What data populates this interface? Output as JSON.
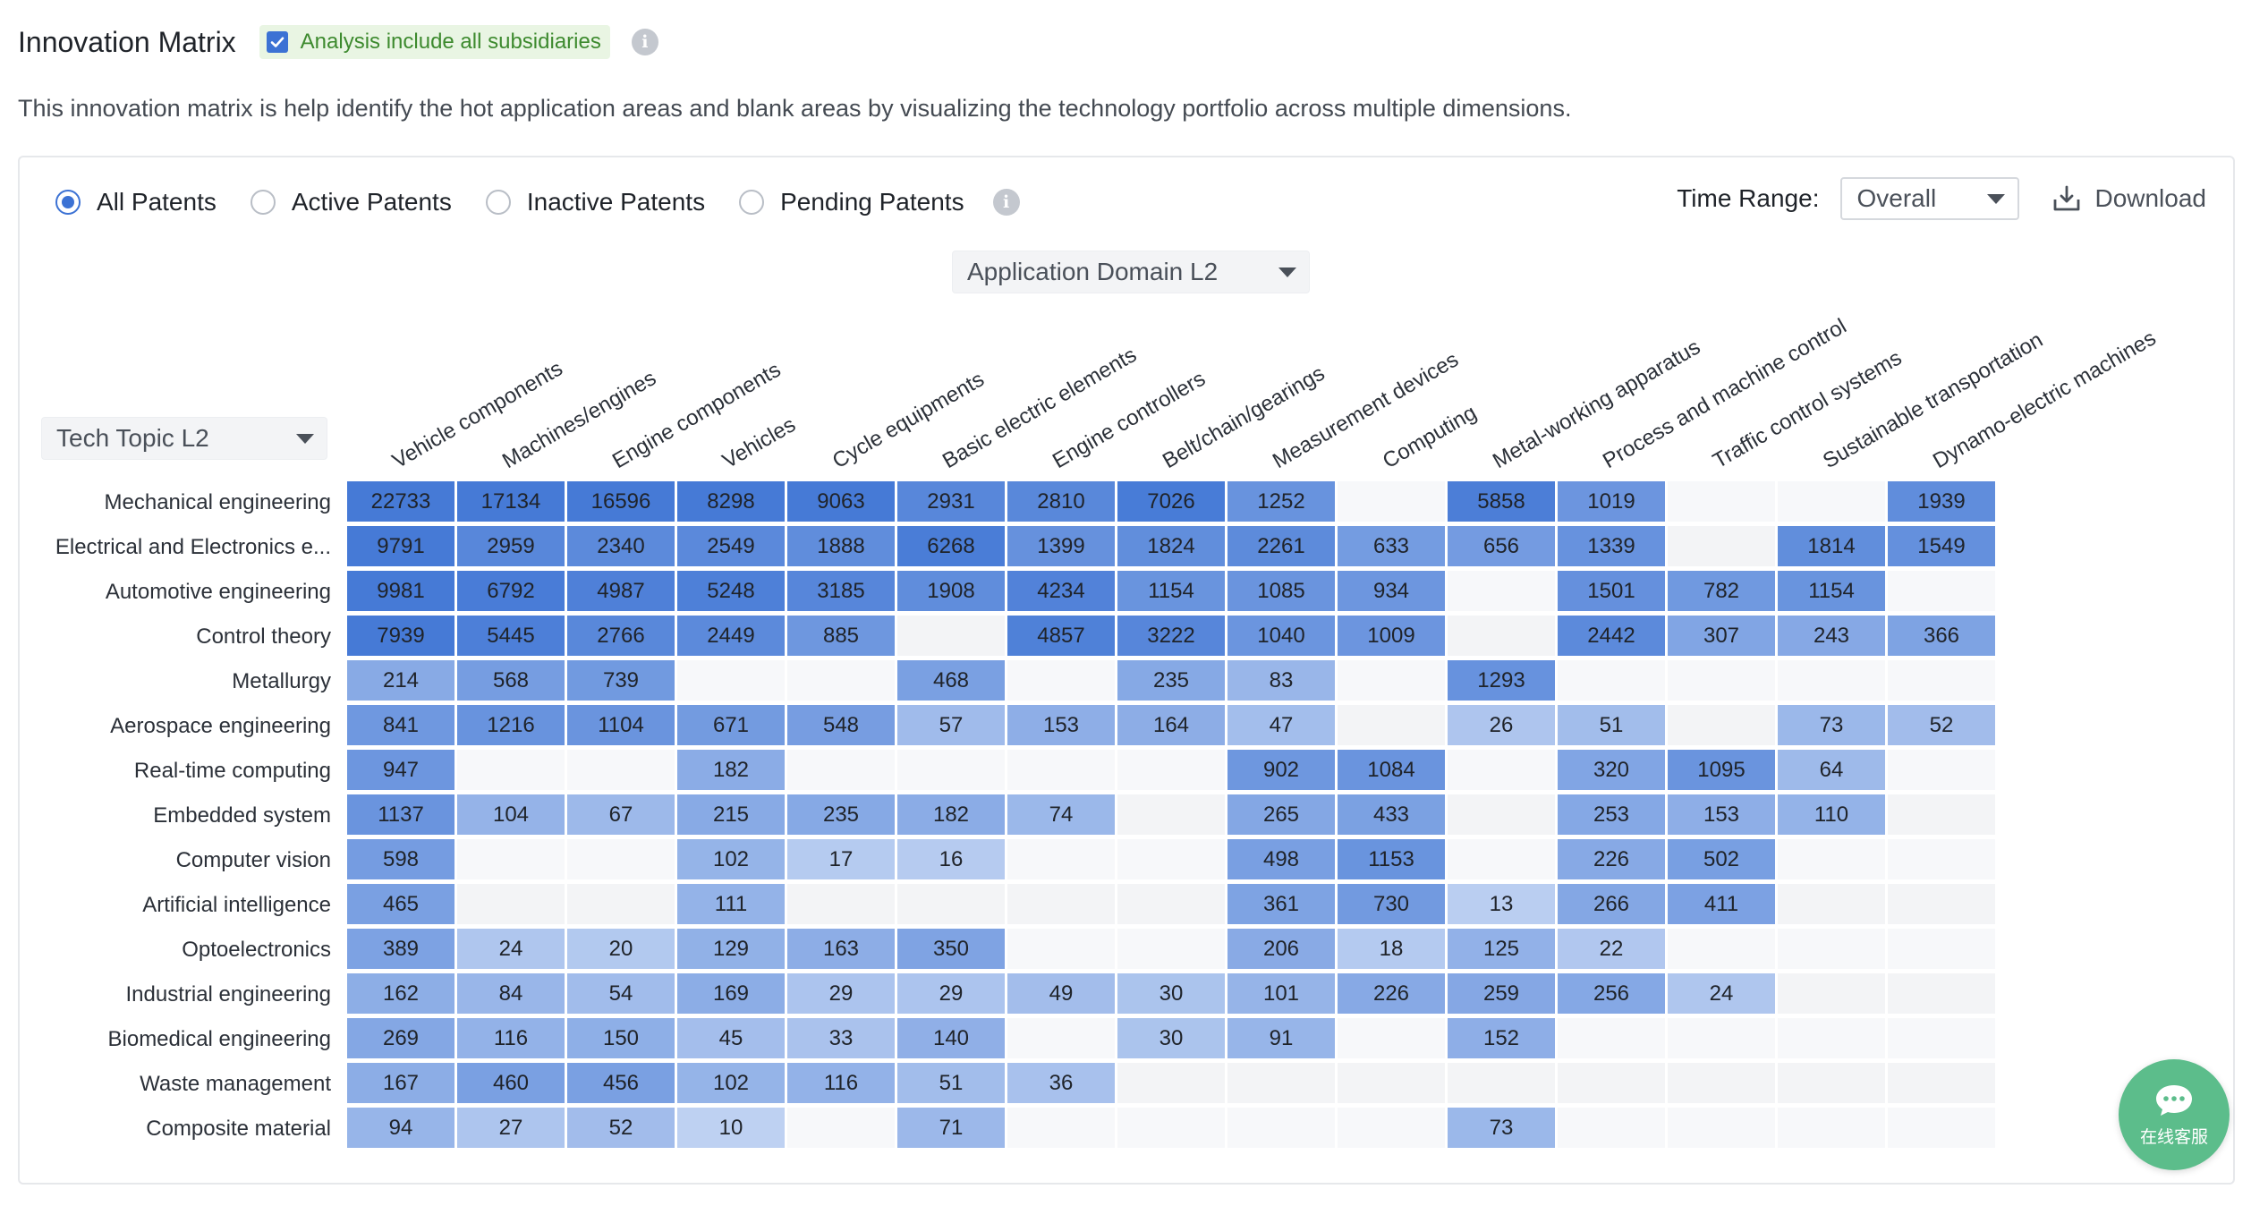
{
  "header": {
    "title": "Innovation Matrix",
    "subsidiaries_label": "Analysis include all subsidiaries",
    "subsidiaries_checked": true
  },
  "description": "This innovation matrix is help identify the hot application areas and blank areas by visualizing the technology portfolio across multiple dimensions.",
  "filters": {
    "options": [
      "All Patents",
      "Active Patents",
      "Inactive Patents",
      "Pending Patents"
    ],
    "selected": "All Patents"
  },
  "time_range": {
    "label": "Time Range:",
    "value": "Overall"
  },
  "download_label": "Download",
  "domain_select": {
    "value": "Application Domain L2"
  },
  "topic_select": {
    "value": "Tech Topic L2"
  },
  "matrix": {
    "columns": [
      "Vehicle components",
      "Machines/engines",
      "Engine components",
      "Vehicles",
      "Cycle equipments",
      "Basic electric elements",
      "Engine controllers",
      "Belt/chain/gearings",
      "Measurement devices",
      "Computing",
      "Metal-working apparatus",
      "Process and machine control",
      "Traffic control systems",
      "Sustainable transportation",
      "Dynamo-electric machines"
    ],
    "rows": [
      {
        "label": "Mechanical engineering",
        "values": [
          22733,
          17134,
          16596,
          8298,
          9063,
          2931,
          2810,
          7026,
          1252,
          null,
          5858,
          1019,
          null,
          null,
          1939
        ]
      },
      {
        "label": "Electrical and Electronics e...",
        "values": [
          9791,
          2959,
          2340,
          2549,
          1888,
          6268,
          1399,
          1824,
          2261,
          633,
          656,
          1339,
          null,
          1814,
          1549
        ]
      },
      {
        "label": "Automotive engineering",
        "values": [
          9981,
          6792,
          4987,
          5248,
          3185,
          1908,
          4234,
          1154,
          1085,
          934,
          null,
          1501,
          782,
          1154,
          null
        ]
      },
      {
        "label": "Control theory",
        "values": [
          7939,
          5445,
          2766,
          2449,
          885,
          null,
          4857,
          3222,
          1040,
          1009,
          null,
          2442,
          307,
          243,
          366
        ]
      },
      {
        "label": "Metallurgy",
        "values": [
          214,
          568,
          739,
          null,
          null,
          468,
          null,
          235,
          83,
          null,
          1293,
          null,
          null,
          null,
          null
        ]
      },
      {
        "label": "Aerospace engineering",
        "values": [
          841,
          1216,
          1104,
          671,
          548,
          57,
          153,
          164,
          47,
          null,
          26,
          51,
          null,
          73,
          52
        ]
      },
      {
        "label": "Real-time computing",
        "values": [
          947,
          null,
          null,
          182,
          null,
          null,
          null,
          null,
          902,
          1084,
          null,
          320,
          1095,
          64,
          null
        ]
      },
      {
        "label": "Embedded system",
        "values": [
          1137,
          104,
          67,
          215,
          235,
          182,
          74,
          null,
          265,
          433,
          null,
          253,
          153,
          110,
          null
        ]
      },
      {
        "label": "Computer vision",
        "values": [
          598,
          null,
          null,
          102,
          17,
          16,
          null,
          null,
          498,
          1153,
          null,
          226,
          502,
          null,
          null
        ]
      },
      {
        "label": "Artificial intelligence",
        "values": [
          465,
          null,
          null,
          111,
          null,
          null,
          null,
          null,
          361,
          730,
          13,
          266,
          411,
          null,
          null
        ]
      },
      {
        "label": "Optoelectronics",
        "values": [
          389,
          24,
          20,
          129,
          163,
          350,
          null,
          null,
          206,
          18,
          125,
          22,
          null,
          null,
          null
        ]
      },
      {
        "label": "Industrial engineering",
        "values": [
          162,
          84,
          54,
          169,
          29,
          29,
          49,
          30,
          101,
          226,
          259,
          256,
          24,
          null,
          null
        ]
      },
      {
        "label": "Biomedical engineering",
        "values": [
          269,
          116,
          150,
          45,
          33,
          140,
          null,
          30,
          91,
          null,
          152,
          null,
          null,
          null,
          null
        ]
      },
      {
        "label": "Waste management",
        "values": [
          167,
          460,
          456,
          102,
          116,
          51,
          36,
          null,
          null,
          null,
          null,
          null,
          null,
          null,
          null
        ]
      },
      {
        "label": "Composite material",
        "values": [
          94,
          27,
          52,
          10,
          null,
          71,
          null,
          null,
          null,
          null,
          73,
          null,
          null,
          null,
          null
        ]
      }
    ]
  },
  "chat": {
    "label": "在线客服"
  },
  "colors": {
    "accent": "#3c72d4",
    "chip_bg": "#e9f5e3",
    "chip_text": "#3d8a2e",
    "chat": "#5cbd8b"
  }
}
